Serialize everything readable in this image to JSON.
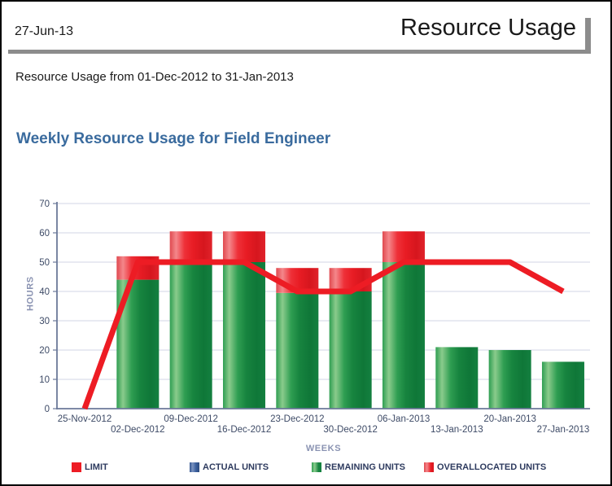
{
  "header": {
    "date": "27-Jun-13",
    "report_title": "Resource Usage"
  },
  "subtitle": "Resource Usage from 01-Dec-2012 to 31-Jan-2013",
  "chart_data": {
    "type": "bar",
    "title": "Weekly Resource Usage for Field Engineer",
    "xlabel": "WEEKS",
    "ylabel": "HOURS",
    "ylim": [
      0,
      70
    ],
    "ytick_step": 10,
    "grid": true,
    "legend_position": "bottom",
    "categories": [
      "25-Nov-2012",
      "02-Dec-2012",
      "09-Dec-2012",
      "16-Dec-2012",
      "23-Dec-2012",
      "30-Dec-2012",
      "06-Jan-2013",
      "13-Jan-2013",
      "20-Jan-2013",
      "27-Jan-2013"
    ],
    "series": [
      {
        "name": "LIMIT",
        "render": "line",
        "color": "#ed1c24",
        "values": [
          0,
          50,
          50,
          50,
          40,
          40,
          50,
          50,
          50,
          40
        ]
      },
      {
        "name": "ACTUAL UNITS",
        "render": "bar",
        "color": "#3b5b98",
        "values": [
          0,
          0,
          0,
          0,
          0,
          0,
          0,
          0,
          0,
          0
        ]
      },
      {
        "name": "REMAINING UNITS",
        "render": "bar",
        "color": "#1e8f46",
        "values": [
          0,
          44,
          49.5,
          50,
          39.5,
          40,
          50,
          21,
          20,
          16
        ]
      },
      {
        "name": "OVERALLOCATED UNITS",
        "render": "bar-stacked-top",
        "color": "#ed1c24",
        "values": [
          0,
          8,
          11,
          10.5,
          8.5,
          8,
          10.5,
          0,
          0,
          0
        ]
      }
    ]
  },
  "legend": {
    "items": [
      {
        "label": "LIMIT",
        "swatch": "limit"
      },
      {
        "label": "ACTUAL UNITS",
        "swatch": "actual"
      },
      {
        "label": "REMAINING UNITS",
        "swatch": "remaining"
      },
      {
        "label": "OVERALLOCATED UNITS",
        "swatch": "over"
      }
    ]
  },
  "colors": {
    "limit_red": "#ed1c24",
    "remaining_green": "#1e8f46",
    "actual_blue": "#3b5b98",
    "title_blue": "#3a6b9e",
    "axis": "#6b7899",
    "grid": "#dadde9",
    "axis_label": "#8a93b2",
    "tick_label": "#3d4a66",
    "header_gray": "#8c8c8c"
  }
}
